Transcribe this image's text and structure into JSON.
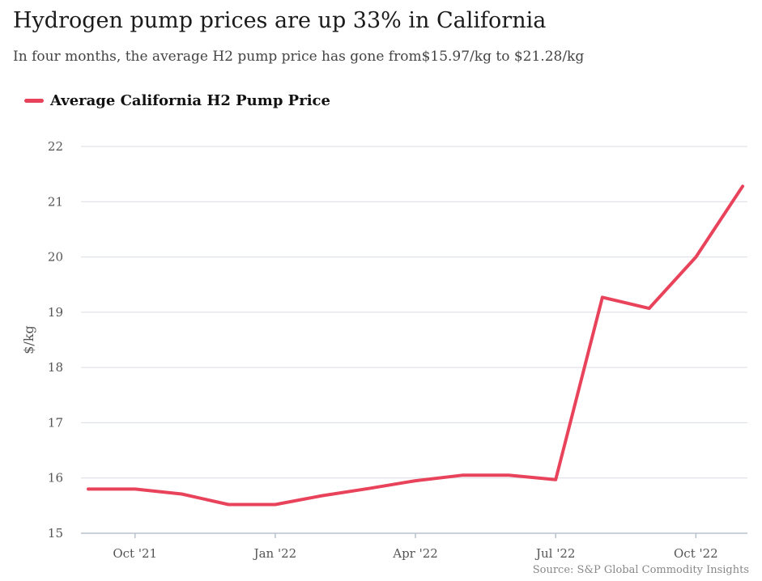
{
  "header": {
    "title": "Hydrogen pump prices are up 33% in California",
    "subtitle": "In four months, the average H2 pump price has gone from$15.97/kg to $21.28/kg"
  },
  "footer": {
    "source": "Source: S&P Global Commodity Insights"
  },
  "colors": {
    "series": "#e8435a",
    "grid": "#d9dde3",
    "axis": "#b8c2cc"
  },
  "chart_data": {
    "type": "line",
    "title": "Hydrogen pump prices are up 33% in California",
    "subtitle": "In four months, the average H2 pump price has gone from$15.97/kg to $21.28/kg",
    "xlabel": "",
    "ylabel": "$/kg",
    "ylim": [
      15,
      22
    ],
    "yticks": [
      15,
      16,
      17,
      18,
      19,
      20,
      21,
      22
    ],
    "x": [
      "Sep '21",
      "Oct '21",
      "Nov '21",
      "Dec '21",
      "Jan '22",
      "Feb '22",
      "Mar '22",
      "Apr '22",
      "May '22",
      "Jun '22",
      "Jul '22",
      "Aug '22",
      "Sep '22",
      "Oct '22",
      "Nov '22"
    ],
    "xticks": [
      "Oct '21",
      "Jan '22",
      "Apr '22",
      "Jul '22",
      "Oct '22"
    ],
    "series": [
      {
        "name": "Average California H2 Pump Price",
        "values": [
          15.8,
          15.8,
          15.71,
          15.52,
          15.52,
          15.68,
          15.81,
          15.95,
          16.05,
          16.05,
          15.97,
          19.27,
          19.07,
          20.0,
          21.28
        ]
      }
    ],
    "grid": true,
    "legend": "top-left"
  }
}
